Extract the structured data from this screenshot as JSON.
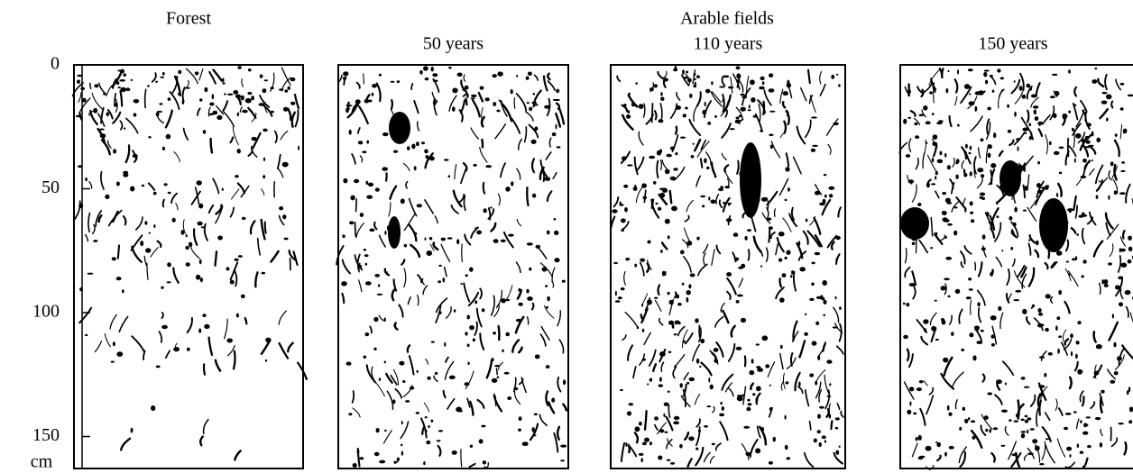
{
  "group_title": "Arable fields",
  "panels": [
    {
      "title": "Forest"
    },
    {
      "title": "50 years"
    },
    {
      "title": "110 years"
    },
    {
      "title": "150 years"
    }
  ],
  "axis": {
    "ticks": [
      0,
      50,
      100,
      150
    ],
    "unit": "cm"
  }
}
